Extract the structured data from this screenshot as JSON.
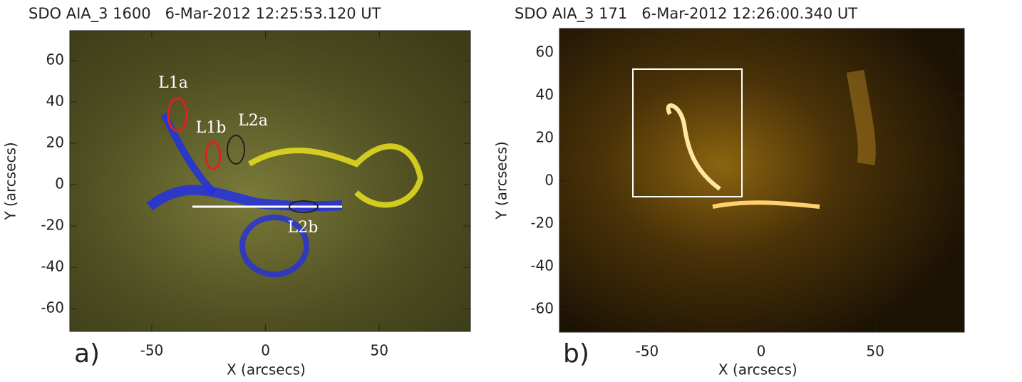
{
  "chart_data": [
    {
      "type": "image",
      "title": "SDO AIA_3 1600   6-Mar-2012 12:25:53.120 UT",
      "xlabel": "X (arcsecs)",
      "ylabel": "Y (arcsecs)",
      "panel_label": "a)",
      "xlim": [
        -86,
        90
      ],
      "ylim": [
        -71,
        74.5
      ],
      "xticks": [
        -50,
        0,
        50
      ],
      "yticks": [
        -60,
        -40,
        -20,
        0,
        20,
        40,
        60
      ],
      "annotations": [
        "L1a",
        "L1b",
        "L2a",
        "L2b"
      ]
    },
    {
      "type": "image",
      "title": "SDO AIA_3 171   6-Mar-2012 12:26:00.340 UT",
      "xlabel": "X (arcsecs)",
      "ylabel": "Y (arcsecs)",
      "panel_label": "b)",
      "xlim": [
        -88.4,
        89
      ],
      "ylim": [
        -70.7,
        71.3
      ],
      "xticks": [
        -50,
        0,
        50
      ],
      "yticks": [
        -60,
        -40,
        -20,
        0,
        20,
        40,
        60
      ]
    }
  ]
}
